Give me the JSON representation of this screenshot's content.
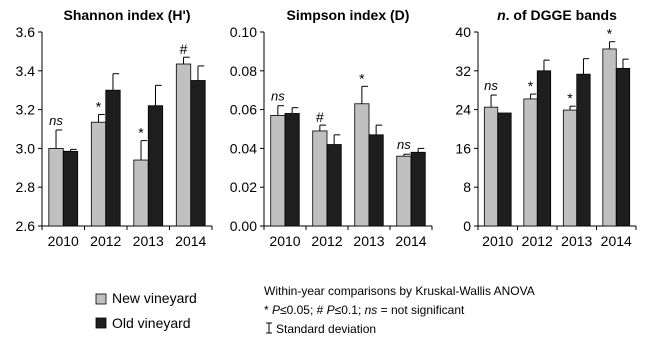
{
  "chart_data": [
    {
      "type": "bar",
      "title": "Shannon index (H')",
      "categories": [
        "2010",
        "2012",
        "2013",
        "2014"
      ],
      "ylim": [
        2.6,
        3.6
      ],
      "yticks": [
        "2.6",
        "2.8",
        "3.0",
        "3.2",
        "3.4",
        "3.6"
      ],
      "series": [
        {
          "name": "New vineyard",
          "values": [
            3.0,
            3.135,
            2.94,
            3.435
          ],
          "errors": [
            0.095,
            0.04,
            0.1,
            0.035
          ]
        },
        {
          "name": "Old vineyard",
          "values": [
            2.985,
            3.3,
            3.22,
            3.35
          ],
          "errors": [
            0.01,
            0.085,
            0.105,
            0.075
          ]
        }
      ],
      "annotations": [
        "ns",
        "*",
        "*",
        "#"
      ]
    },
    {
      "type": "bar",
      "title": "Simpson index (D)",
      "categories": [
        "2010",
        "2012",
        "2013",
        "2014"
      ],
      "ylim": [
        0.0,
        0.1
      ],
      "yticks": [
        "0.00",
        "0.02",
        "0.04",
        "0.06",
        "0.08",
        "0.10"
      ],
      "series": [
        {
          "name": "New vineyard",
          "values": [
            0.057,
            0.049,
            0.063,
            0.036
          ],
          "errors": [
            0.005,
            0.003,
            0.009,
            0.001
          ]
        },
        {
          "name": "Old vineyard",
          "values": [
            0.058,
            0.042,
            0.047,
            0.038
          ],
          "errors": [
            0.003,
            0.005,
            0.005,
            0.002
          ]
        }
      ],
      "annotations": [
        "ns",
        "#",
        "*",
        "ns"
      ]
    },
    {
      "type": "bar",
      "title_parts": [
        "n",
        ". of DGGE bands"
      ],
      "categories": [
        "2010",
        "2012",
        "2013",
        "2014"
      ],
      "ylim": [
        0,
        40
      ],
      "yticks": [
        "0",
        "8",
        "16",
        "24",
        "32",
        "40"
      ],
      "series": [
        {
          "name": "New vineyard",
          "values": [
            24.5,
            26.2,
            23.9,
            36.5
          ],
          "errors": [
            2.5,
            1.0,
            0.8,
            1.5
          ]
        },
        {
          "name": "Old vineyard",
          "values": [
            23.3,
            32.0,
            31.3,
            32.5
          ],
          "errors": [
            0.0,
            2.2,
            3.2,
            1.9
          ]
        }
      ],
      "annotations": [
        "ns",
        "*",
        "*",
        "*"
      ]
    }
  ],
  "legend": {
    "items": [
      {
        "label": "New vineyard",
        "color": "#c0c0c0"
      },
      {
        "label": "Old vineyard",
        "color": "#1e1e1e"
      }
    ]
  },
  "notes": {
    "line1": "Within-year comparisons by Kruskal-Wallis ANOVA",
    "line2_parts": [
      "* ",
      "P",
      "≤0.05; # ",
      "P",
      "≤0.1; ",
      "ns",
      " = not significant"
    ],
    "line3": "Standard deviation"
  },
  "colors": {
    "new": "#c0c0c0",
    "old": "#1e1e1e",
    "axis": "#000000"
  }
}
